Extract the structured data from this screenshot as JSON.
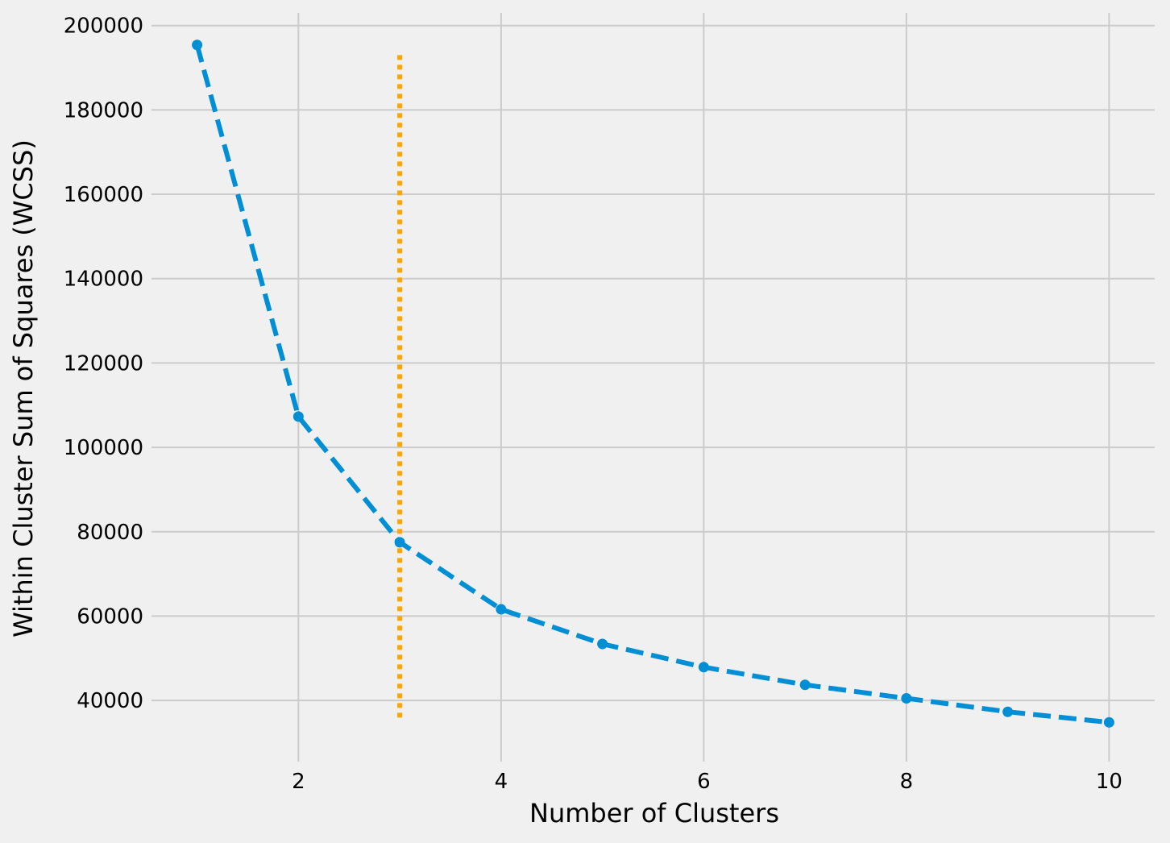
{
  "chart_data": {
    "type": "line",
    "title": "",
    "xlabel": "Number of Clusters",
    "ylabel": "Within Cluster Sum of Squares (WCSS)",
    "xlim": [
      0.55,
      10.45
    ],
    "ylim": [
      25500,
      203000
    ],
    "x_ticks": [
      2,
      4,
      6,
      8,
      10
    ],
    "y_ticks": [
      40000,
      60000,
      80000,
      100000,
      120000,
      140000,
      160000,
      180000,
      200000
    ],
    "grid": true,
    "legend": "none",
    "series": [
      {
        "x": [
          1,
          2,
          3,
          4,
          5,
          6,
          7,
          8,
          9,
          10
        ],
        "values": [
          195400,
          107300,
          77500,
          61600,
          53400,
          47900,
          43700,
          40500,
          37300,
          34800
        ],
        "color": "#008fd5",
        "line_style": "dashed",
        "marker": "circle"
      }
    ],
    "reference_lines": [
      {
        "orientation": "vertical",
        "x": 3,
        "y_range": [
          34800,
          193000
        ],
        "color": "#ffa500",
        "line_style": "dotted"
      }
    ],
    "colors": {
      "background": "#f0f0f0",
      "grid": "#cbcbcb"
    }
  }
}
